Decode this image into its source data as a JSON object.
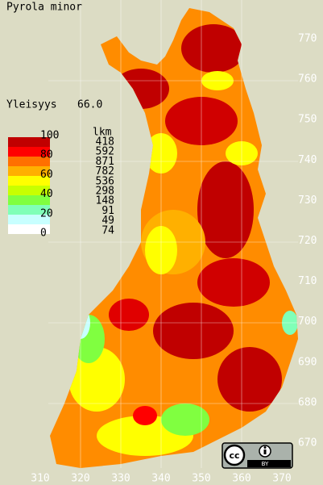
{
  "title": "Pyrola minor",
  "frequency": {
    "label": "Yleisyys",
    "value": "66.0"
  },
  "legend": {
    "scale_labels": [
      100,
      80,
      60,
      40,
      20,
      0
    ],
    "colors": [
      "#c00000",
      "#ff0000",
      "#ff7000",
      "#ffb000",
      "#ffff00",
      "#c8ff00",
      "#80ff40",
      "#80ffb8",
      "#c8ffff",
      "#ffffff"
    ],
    "count_header": "lkm",
    "counts": [
      418,
      592,
      871,
      782,
      536,
      298,
      148,
      91,
      49,
      74
    ]
  },
  "y_labels": [
    770,
    760,
    750,
    740,
    730,
    720,
    710,
    700,
    690,
    680,
    670
  ],
  "x_labels": [
    310,
    320,
    330,
    340,
    350,
    360,
    370
  ],
  "license": "BY"
}
